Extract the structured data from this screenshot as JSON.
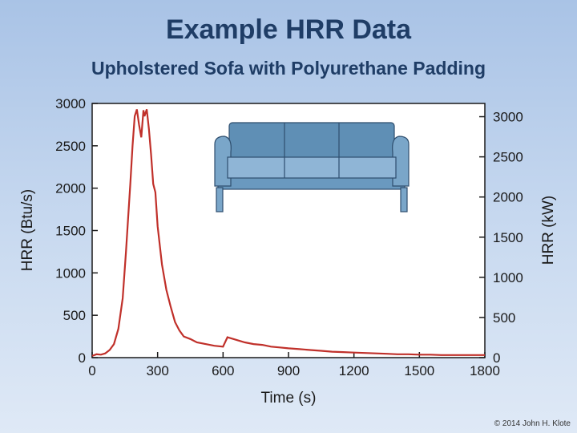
{
  "slide": {
    "title": "Example HRR Data",
    "subtitle": "Upholstered Sofa with Polyurethane Padding",
    "copyright": "© 2014 John H. Klote"
  },
  "sofa_icon": "sofa-icon",
  "chart_data": {
    "type": "line",
    "xlabel": "Time (s)",
    "ylabel": "HRR (Btu/s)",
    "y2label": "HRR (kW)",
    "xlim": [
      0,
      1800
    ],
    "ylim": [
      0,
      3000
    ],
    "y2lim_kw": [
      0,
      3165
    ],
    "xticks": [
      0,
      300,
      600,
      900,
      1200,
      1500,
      1800
    ],
    "yticks": [
      0,
      500,
      1000,
      1500,
      2000,
      2500,
      3000
    ],
    "y2ticks": [
      0,
      500,
      1000,
      1500,
      2000,
      2500,
      3000
    ],
    "line_color": "#c0302a",
    "series": [
      {
        "x": [
          0,
          20,
          40,
          60,
          80,
          100,
          120,
          140,
          155,
          165,
          175,
          185,
          195,
          205,
          215,
          225,
          235,
          240,
          250,
          260,
          270,
          280,
          290,
          300,
          320,
          340,
          360,
          380,
          400,
          420,
          450,
          480,
          520,
          560,
          600,
          620,
          660,
          700,
          740,
          780,
          820,
          860,
          900,
          950,
          1000,
          1050,
          1100,
          1150,
          1200,
          1250,
          1300,
          1350,
          1400,
          1450,
          1500,
          1550,
          1600,
          1650,
          1700,
          1750,
          1800
        ],
        "y": [
          20,
          40,
          35,
          50,
          90,
          160,
          340,
          700,
          1250,
          1650,
          2050,
          2500,
          2850,
          2930,
          2750,
          2600,
          2920,
          2850,
          2930,
          2700,
          2400,
          2050,
          1950,
          1550,
          1100,
          800,
          600,
          420,
          320,
          250,
          220,
          180,
          160,
          140,
          130,
          240,
          210,
          180,
          160,
          150,
          130,
          120,
          110,
          100,
          90,
          80,
          70,
          65,
          60,
          55,
          50,
          45,
          40,
          40,
          35,
          35,
          30,
          30,
          30,
          30,
          30
        ]
      }
    ]
  }
}
